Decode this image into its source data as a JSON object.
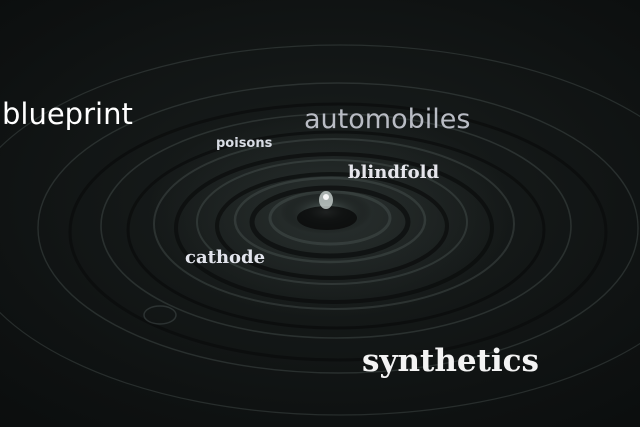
{
  "scene": {
    "subject": "water-drop-ripples",
    "background_color": "#0e1111",
    "highlight_color": "#5a6664"
  },
  "words": {
    "blueprint": "blueprint",
    "automobiles": "automobiles",
    "poisons": "poisons",
    "blindfold": "blindfold",
    "cathode": "cathode",
    "synthetics": "synthetics"
  }
}
